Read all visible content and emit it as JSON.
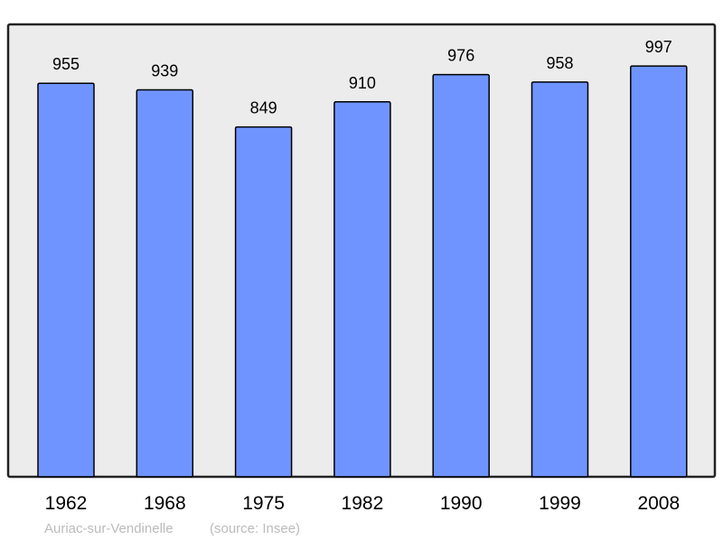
{
  "chart_data": {
    "type": "bar",
    "categories": [
      "1962",
      "1968",
      "1975",
      "1982",
      "1990",
      "1999",
      "2008"
    ],
    "values": [
      955,
      939,
      849,
      910,
      976,
      958,
      997
    ],
    "title": "",
    "xlabel": "",
    "ylabel": "",
    "ylim": [
      0,
      1098
    ],
    "grid": false,
    "data_labels": true,
    "colors": {
      "bar": "#7094ff",
      "bar_stroke": "#000000",
      "plot_background": "#ececec",
      "frame": "#222222",
      "caption": "#bbbbbb"
    }
  },
  "caption": {
    "place": "Auriac-sur-Vendinelle",
    "source": "(source: Insee)"
  }
}
